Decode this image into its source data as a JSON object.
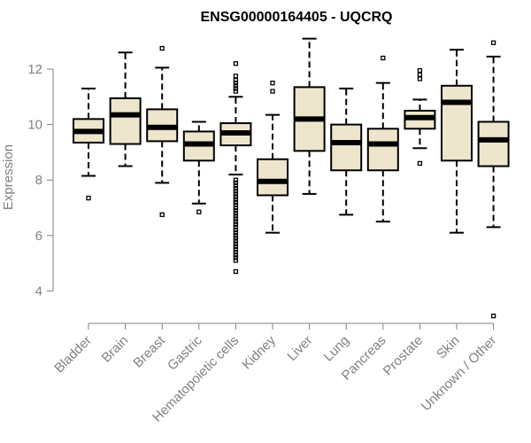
{
  "chart_data": {
    "type": "boxplot",
    "title": "ENSG00000164405 - UQCRQ",
    "xlabel": "",
    "ylabel": "Expression",
    "ylim": [
      3.0,
      13.4
    ],
    "yticks": [
      4,
      6,
      8,
      10,
      12
    ],
    "grid": false,
    "colors": {
      "box_fill": "#ede5cc",
      "box_stroke": "#000000",
      "axis": "#808080",
      "text": "#808080"
    },
    "categories": [
      "Bladder",
      "Brain",
      "Breast",
      "Gastric",
      "Hematopoietic cells",
      "Kidney",
      "Liver",
      "Lung",
      "Pancreas",
      "Prostate",
      "Skin",
      "Unknown / Other"
    ],
    "boxes": [
      {
        "name": "Bladder",
        "whisker_low": 8.15,
        "q1": 9.35,
        "median": 9.75,
        "q3": 10.2,
        "whisker_high": 11.3,
        "outliers": [
          7.35
        ]
      },
      {
        "name": "Brain",
        "whisker_low": 8.5,
        "q1": 9.3,
        "median": 10.35,
        "q3": 10.95,
        "whisker_high": 12.6,
        "outliers": []
      },
      {
        "name": "Breast",
        "whisker_low": 7.9,
        "q1": 9.4,
        "median": 9.9,
        "q3": 10.55,
        "whisker_high": 12.05,
        "outliers": [
          6.75,
          12.75
        ]
      },
      {
        "name": "Gastric",
        "whisker_low": 7.15,
        "q1": 8.7,
        "median": 9.3,
        "q3": 9.75,
        "whisker_high": 10.1,
        "outliers": [
          6.85
        ]
      },
      {
        "name": "Hematopoietic cells",
        "whisker_low": 8.2,
        "q1": 9.25,
        "median": 9.7,
        "q3": 10.05,
        "whisker_high": 11.0,
        "outliers": [
          12.2,
          11.75,
          11.6,
          11.5,
          11.4,
          11.3,
          11.2,
          8.0,
          7.9,
          7.8,
          7.7,
          7.6,
          7.5,
          7.4,
          7.3,
          7.2,
          7.1,
          7.0,
          6.9,
          6.8,
          6.7,
          6.6,
          6.5,
          6.4,
          6.3,
          6.2,
          6.1,
          6.0,
          5.9,
          5.8,
          5.7,
          5.6,
          5.5,
          5.4,
          5.3,
          5.2,
          5.1,
          4.7
        ]
      },
      {
        "name": "Kidney",
        "whisker_low": 6.1,
        "q1": 7.45,
        "median": 7.95,
        "q3": 8.75,
        "whisker_high": 10.35,
        "outliers": [
          11.2,
          11.5
        ]
      },
      {
        "name": "Liver",
        "whisker_low": 7.5,
        "q1": 9.05,
        "median": 10.2,
        "q3": 11.35,
        "whisker_high": 13.1,
        "outliers": []
      },
      {
        "name": "Lung",
        "whisker_low": 6.75,
        "q1": 8.35,
        "median": 9.35,
        "q3": 10.0,
        "whisker_high": 11.3,
        "outliers": []
      },
      {
        "name": "Pancreas",
        "whisker_low": 6.5,
        "q1": 8.35,
        "median": 9.3,
        "q3": 9.85,
        "whisker_high": 11.5,
        "outliers": [
          12.4
        ]
      },
      {
        "name": "Prostate",
        "whisker_low": 9.15,
        "q1": 9.85,
        "median": 10.25,
        "q3": 10.5,
        "whisker_high": 10.9,
        "outliers": [
          8.6,
          11.65,
          11.8,
          11.95
        ]
      },
      {
        "name": "Skin",
        "whisker_low": 6.1,
        "q1": 8.7,
        "median": 10.8,
        "q3": 11.4,
        "whisker_high": 12.7,
        "outliers": []
      },
      {
        "name": "Unknown / Other",
        "whisker_low": 6.3,
        "q1": 8.5,
        "median": 9.45,
        "q3": 10.1,
        "whisker_high": 12.45,
        "outliers": [
          3.1,
          12.95
        ]
      }
    ]
  }
}
